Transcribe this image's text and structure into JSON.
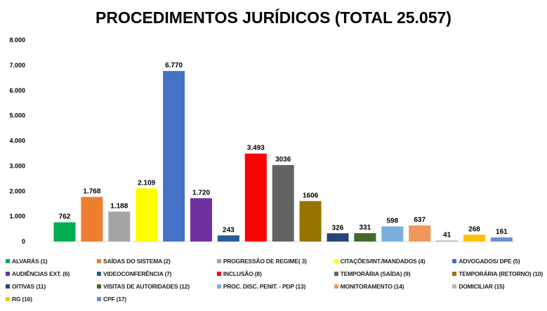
{
  "chart_data": {
    "type": "bar",
    "title": "PROCEDIMENTOS JURÍDICOS (TOTAL 25.057)",
    "ylim": [
      0,
      8000
    ],
    "yticks": [
      "0",
      "1.000",
      "2.000",
      "3.000",
      "4.000",
      "5.000",
      "6.000",
      "7.000",
      "8.000"
    ],
    "grid": false,
    "legend_position": "bottom",
    "categories": [
      "ALVARÁS (1)",
      "SAÍDAS DO SISTEMA (2)",
      "PROGRESSÃO DE REGIME( 3)",
      "CITAÇÕES/INT./MANDADOS (4)",
      "ADVOGADOS/ DPE (5)",
      "AUDIÊNCIAS EXT. (6)",
      "VIDEOCONFERÊNCIA (7)",
      "INCLUSÃO (8)",
      "TEMPORÁRIA (SAÍDA) (9)",
      "TEMPORÁRIA (RETORNO) (10)",
      "OITIVAS (11)",
      "VISITAS DE AUTORIDADES (12)",
      "PROC. DISC. PENIT. - PDP (13)",
      "MONITORAMENTO (14)",
      "DOMICILIAR (15)",
      "RG (16)",
      "CPF (17)"
    ],
    "values": [
      762,
      1768,
      1188,
      2109,
      6770,
      1720,
      243,
      3493,
      3036,
      1606,
      326,
      331,
      598,
      637,
      41,
      268,
      161
    ],
    "data_labels": [
      "762",
      "1.768",
      "1.188",
      "2.109",
      "6.770",
      "1.720",
      "243",
      "3.493",
      "3036",
      "1606",
      "326",
      "331",
      "598",
      "637",
      "41",
      "268",
      "161"
    ],
    "colors": [
      "#00b050",
      "#ed7d31",
      "#a5a5a5",
      "#ffff00",
      "#4472c4",
      "#7030a0",
      "#255e91",
      "#ff0000",
      "#636363",
      "#997300",
      "#264478",
      "#43682b",
      "#7cafdd",
      "#f1975a",
      "#b7b7b7",
      "#ffc000",
      "#698ed0"
    ]
  }
}
